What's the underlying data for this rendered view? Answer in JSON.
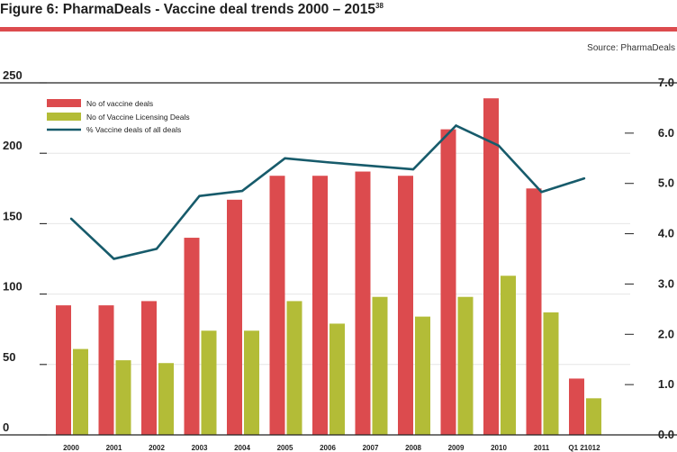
{
  "figure": {
    "title": "Figure 6: PharmaDeals - Vaccine deal trends 2000 – 2015",
    "title_sup": "38",
    "source": "Source: PharmaDeals"
  },
  "colors": {
    "accent_rule": "#dc4b4e",
    "deals": "#dc4b4e",
    "licensing": "#b3bc37",
    "pct_line": "#175b6b",
    "axis": "#222222"
  },
  "chart_data": {
    "type": "bar",
    "categories": [
      "2000",
      "2001",
      "2002",
      "2003",
      "2004",
      "2005",
      "2006",
      "2007",
      "2008",
      "2009",
      "2010",
      "2011",
      "Q1 21012"
    ],
    "series": [
      {
        "name": "No of vaccine deals",
        "kind": "bar",
        "axis": "left",
        "values": [
          92,
          92,
          95,
          140,
          167,
          184,
          184,
          187,
          184,
          217,
          239,
          175,
          40
        ]
      },
      {
        "name": "No of Vaccine Licensing Deals",
        "kind": "bar",
        "axis": "left",
        "values": [
          61,
          53,
          51,
          74,
          74,
          95,
          79,
          98,
          84,
          98,
          113,
          87,
          26
        ]
      },
      {
        "name": "% Vaccine deals of all deals",
        "kind": "line",
        "axis": "right",
        "values": [
          4.3,
          3.5,
          3.7,
          4.75,
          4.85,
          5.5,
          5.42,
          5.35,
          5.28,
          6.15,
          5.75,
          4.83,
          5.1
        ]
      }
    ],
    "ylim": [
      0,
      250
    ],
    "y2lim": [
      0,
      7
    ],
    "yticks": [
      "0",
      "50",
      "100",
      "150",
      "200",
      "250"
    ],
    "y2ticks": [
      "0.0",
      "1.0",
      "2.0",
      "3.0",
      "4.0",
      "5.0",
      "6.0",
      "7.0"
    ],
    "legend": "top-left",
    "grid": true
  }
}
